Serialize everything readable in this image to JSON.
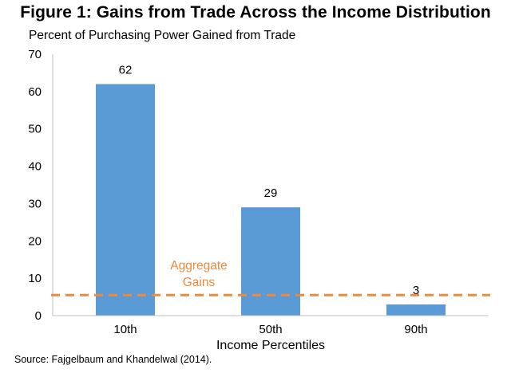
{
  "chart_data": {
    "type": "bar",
    "title": "Figure 1: Gains from Trade Across the Income Distribution",
    "subtitle": "Percent of Purchasing Power Gained from Trade",
    "xlabel": "Income Percentiles",
    "ylabel": "",
    "categories": [
      "10th",
      "50th",
      "90th"
    ],
    "values": [
      62,
      29,
      3
    ],
    "data_labels": [
      "62",
      "29",
      "3"
    ],
    "ylim": [
      0,
      70
    ],
    "yticks": [
      0,
      10,
      20,
      30,
      40,
      50,
      60,
      70
    ],
    "reference_line": {
      "value": 5.5,
      "label_line1": "Aggregate",
      "label_line2": "Gains",
      "style": "dashed"
    },
    "grid": false,
    "legend": "none",
    "colors": {
      "bar": "#5b9bd5",
      "reference": "#ee8a3a",
      "axis": "#bfbfbf"
    }
  },
  "source": "Source: Fajgelbaum and Khandelwal (2014)."
}
